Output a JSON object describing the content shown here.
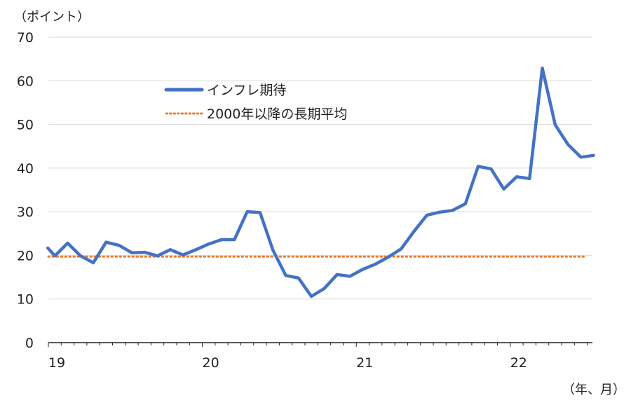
{
  "chart_data": {
    "type": "line",
    "title": "",
    "ylabel": "（ポイント）",
    "xlabel": "（年、月）",
    "ylim": [
      0,
      70
    ],
    "yticks": [
      0,
      10,
      20,
      30,
      40,
      50,
      60,
      70
    ],
    "xtick_labels": [
      "19",
      "20",
      "21",
      "22"
    ],
    "grid": true,
    "legend_placement": "top-center",
    "x": [
      "2018-12",
      "2019-01",
      "2019-02",
      "2019-03",
      "2019-04",
      "2019-05",
      "2019-06",
      "2019-07",
      "2019-08",
      "2019-09",
      "2019-10",
      "2019-11",
      "2019-12",
      "2020-01",
      "2020-02",
      "2020-03",
      "2020-04",
      "2020-05",
      "2020-06",
      "2020-07",
      "2020-08",
      "2020-09",
      "2020-10",
      "2020-11",
      "2020-12",
      "2021-01",
      "2021-02",
      "2021-03",
      "2021-04",
      "2021-05",
      "2021-06",
      "2021-07",
      "2021-08",
      "2021-09",
      "2021-10",
      "2021-11",
      "2021-12",
      "2022-01",
      "2022-02",
      "2022-03",
      "2022-04",
      "2022-05",
      "2022-06",
      "2022-07"
    ],
    "series": [
      {
        "name": "インフレ期待",
        "color": "#4472c4",
        "style": "solid",
        "values": [
          21.7,
          19.9,
          22.8,
          19.9,
          18.3,
          23.0,
          22.3,
          20.6,
          20.7,
          19.9,
          21.3,
          20.1,
          21.3,
          22.6,
          23.6,
          23.6,
          30.0,
          29.8,
          21.2,
          15.4,
          14.8,
          10.6,
          12.4,
          15.6,
          15.2,
          16.8,
          18.0,
          19.6,
          21.5,
          25.5,
          29.2,
          29.9,
          30.3,
          31.8,
          40.4,
          39.8,
          35.2,
          38.0,
          37.6,
          62.9,
          49.9,
          45.4,
          42.5,
          42.9
        ]
      },
      {
        "name": "2000年以降の長期平均",
        "color": "#ed7d31",
        "style": "dotted",
        "constant": 19.7
      }
    ]
  }
}
